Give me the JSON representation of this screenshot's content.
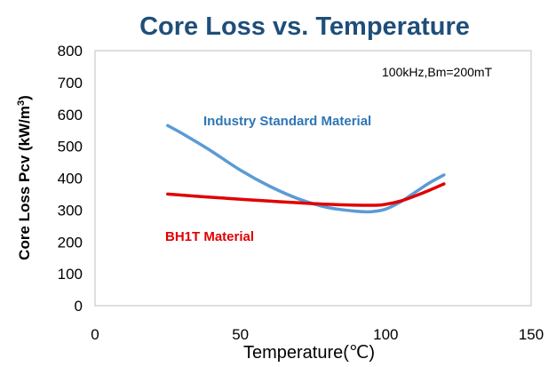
{
  "chart_data": {
    "type": "line",
    "title": "Core Loss vs. Temperature",
    "xlabel": "Temperature(℃)",
    "ylabel_main": "Core Loss  Pcv (kW/m",
    "ylabel_sup": "3",
    "ylabel_end": ")",
    "annotation": "100kHz,Bm=200mT",
    "xlim": [
      0,
      150
    ],
    "ylim": [
      0,
      800
    ],
    "xticks": [
      "0",
      "50",
      "100",
      "150"
    ],
    "yticks": [
      "0",
      "100",
      "200",
      "300",
      "400",
      "500",
      "600",
      "700",
      "800"
    ],
    "grid": false,
    "series": [
      {
        "name": "Industry Standard Material",
        "color": "#5b9bd5",
        "x": [
          25,
          30,
          40,
          50,
          60,
          70,
          80,
          90,
          95,
          100,
          105,
          110,
          115,
          120
        ],
        "y": [
          565,
          540,
          485,
          425,
          375,
          335,
          308,
          296,
          295,
          303,
          325,
          355,
          385,
          410
        ]
      },
      {
        "name": "BH1T Material",
        "color": "#e00000",
        "x": [
          25,
          40,
          60,
          80,
          95,
          100,
          105,
          110,
          115,
          120
        ],
        "y": [
          350,
          340,
          328,
          318,
          315,
          318,
          328,
          344,
          362,
          382
        ]
      }
    ]
  }
}
